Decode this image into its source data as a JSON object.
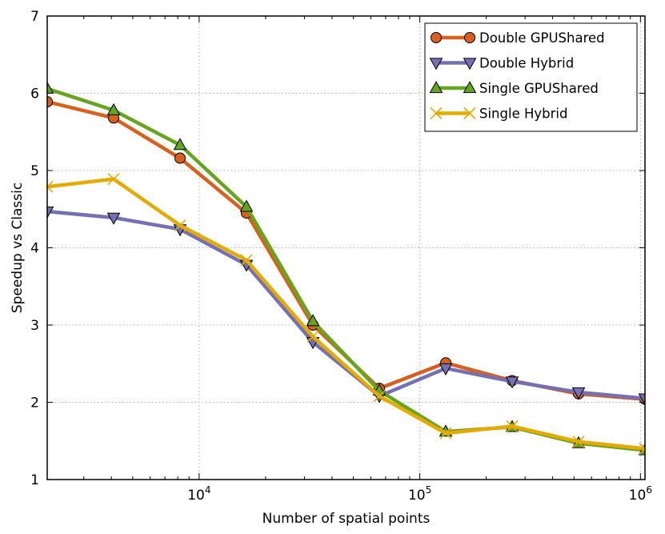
{
  "chart_data": {
    "type": "line",
    "title": "",
    "xlabel": "Number of spatial points",
    "ylabel": "Speedup vs Classic",
    "xscale": "log",
    "xlim": [
      2048,
      1048576
    ],
    "ylim": [
      1,
      7
    ],
    "grid": true,
    "legend_position": "top-right",
    "x": [
      2048,
      4096,
      8192,
      16384,
      32768,
      65536,
      131072,
      262144,
      524288,
      1048576
    ],
    "xticks": [
      {
        "value": 10000,
        "base": "10",
        "exp": "4"
      },
      {
        "value": 100000,
        "base": "10",
        "exp": "5"
      },
      {
        "value": 1000000,
        "base": "10",
        "exp": "6"
      }
    ],
    "yticks": [
      {
        "value": 1,
        "label": "1"
      },
      {
        "value": 2,
        "label": "2"
      },
      {
        "value": 3,
        "label": "3"
      },
      {
        "value": 4,
        "label": "4"
      },
      {
        "value": 5,
        "label": "5"
      },
      {
        "value": 6,
        "label": "6"
      },
      {
        "value": 7,
        "label": "7"
      }
    ],
    "series": [
      {
        "name": "Double GPUShared",
        "color": "#d95f1a",
        "marker": "circle",
        "values": [
          5.89,
          5.68,
          5.16,
          4.45,
          3.0,
          2.18,
          2.51,
          2.28,
          2.11,
          2.04
        ]
      },
      {
        "name": "Double Hybrid",
        "color": "#7570b3",
        "marker": "triangle-down",
        "values": [
          4.47,
          4.39,
          4.24,
          3.78,
          2.78,
          2.08,
          2.44,
          2.27,
          2.13,
          2.05
        ]
      },
      {
        "name": "Single GPUShared",
        "color": "#66a61e",
        "marker": "triangle-up",
        "values": [
          6.06,
          5.78,
          5.33,
          4.53,
          3.05,
          2.15,
          1.62,
          1.68,
          1.47,
          1.38
        ]
      },
      {
        "name": "Single Hybrid",
        "color": "#e6ab02",
        "marker": "x",
        "values": [
          4.79,
          4.89,
          4.29,
          3.84,
          2.85,
          2.08,
          1.6,
          1.69,
          1.49,
          1.4
        ]
      }
    ]
  }
}
